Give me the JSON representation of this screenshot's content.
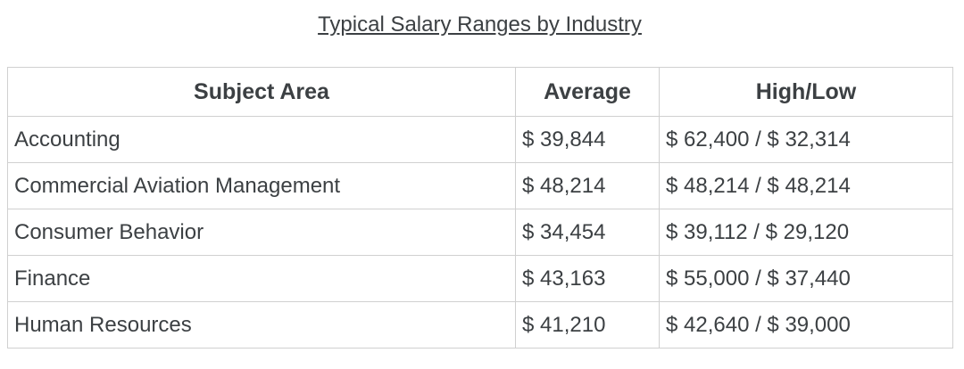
{
  "page": {
    "title": "Typical Salary Ranges by Industry"
  },
  "table": {
    "headers": [
      "Subject Area",
      "Average",
      "High/Low"
    ],
    "rows": [
      [
        "Accounting",
        "$ 39,844",
        "$ 62,400 / $ 32,314"
      ],
      [
        "Commercial Aviation Management",
        "$ 48,214",
        "$ 48,214 / $ 48,214"
      ],
      [
        "Consumer Behavior",
        "$ 34,454",
        "$ 39,112 / $ 29,120"
      ],
      [
        "Finance",
        "$ 43,163",
        "$ 55,000 / $ 37,440"
      ],
      [
        "Human Resources",
        "$ 41,210",
        "$ 42,640 / $ 39,000"
      ]
    ]
  },
  "colors": {
    "text": "#3c4043",
    "border": "#d0d0d0",
    "background": "#ffffff"
  },
  "chart_data": {
    "type": "table",
    "title": "Typical Salary Ranges by Industry",
    "columns": [
      "Subject Area",
      "Average",
      "High/Low"
    ],
    "rows": [
      [
        "Accounting",
        "$ 39,844",
        "$ 62,400 / $ 32,314"
      ],
      [
        "Commercial Aviation Management",
        "$ 48,214",
        "$ 48,214 / $ 48,214"
      ],
      [
        "Consumer Behavior",
        "$ 34,454",
        "$ 39,112 / $ 29,120"
      ],
      [
        "Finance",
        "$ 43,163",
        "$ 55,000 / $ 37,440"
      ],
      [
        "Human Resources",
        "$ 41,210",
        "$ 42,640 / $ 39,000"
      ]
    ],
    "categories": [
      "Accounting",
      "Commercial Aviation Management",
      "Consumer Behavior",
      "Finance",
      "Human Resources"
    ],
    "series": [
      {
        "name": "Average",
        "values": [
          39844,
          48214,
          34454,
          43163,
          41210
        ]
      },
      {
        "name": "High",
        "values": [
          62400,
          48214,
          39112,
          55000,
          42640
        ]
      },
      {
        "name": "Low",
        "values": [
          32314,
          48214,
          29120,
          37440,
          39000
        ]
      }
    ]
  }
}
